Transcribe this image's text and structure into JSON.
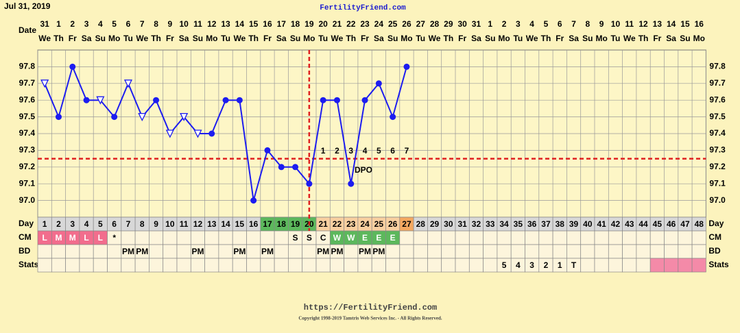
{
  "chart_data": {
    "type": "line",
    "title": "Jul 31, 2019",
    "site": "FertilityFriend.com",
    "date_label": "Date",
    "dates": [
      "31",
      "1",
      "2",
      "3",
      "4",
      "5",
      "6",
      "7",
      "8",
      "9",
      "10",
      "11",
      "12",
      "13",
      "14",
      "15",
      "16",
      "17",
      "18",
      "19",
      "20",
      "21",
      "22",
      "23",
      "24",
      "25",
      "26",
      "27",
      "28",
      "29",
      "30",
      "31",
      "1",
      "2",
      "3",
      "4",
      "5",
      "6",
      "7",
      "8",
      "9",
      "10",
      "11",
      "12",
      "13",
      "14",
      "15",
      "16"
    ],
    "weekdays": [
      "We",
      "Th",
      "Fr",
      "Sa",
      "Su",
      "Mo",
      "Tu",
      "We",
      "Th",
      "Fr",
      "Sa",
      "Su",
      "Mo",
      "Tu",
      "We",
      "Th",
      "Fr",
      "Sa",
      "Su",
      "Mo",
      "Tu",
      "We",
      "Th",
      "Fr",
      "Sa",
      "Su",
      "Mo",
      "Tu",
      "We",
      "Th",
      "Fr",
      "Sa",
      "Su",
      "Mo",
      "Tu",
      "We",
      "Th",
      "Fr",
      "Sa",
      "Su",
      "Mo",
      "Tu",
      "We",
      "Th",
      "Fr",
      "Sa",
      "Su",
      "Mo"
    ],
    "day_label": "Day",
    "days": [
      1,
      2,
      3,
      4,
      5,
      6,
      7,
      8,
      9,
      10,
      11,
      12,
      13,
      14,
      15,
      16,
      17,
      18,
      19,
      20,
      21,
      22,
      23,
      24,
      25,
      26,
      27,
      28,
      29,
      30,
      31,
      32,
      33,
      34,
      35,
      36,
      37,
      38,
      39,
      40,
      41,
      42,
      43,
      44,
      45,
      46,
      47,
      48
    ],
    "day_colors": [
      "#d8d8d8",
      "#d8d8d8",
      "#d8d8d8",
      "#d8d8d8",
      "#d8d8d8",
      "#d8d8d8",
      "#d8d8d8",
      "#d8d8d8",
      "#d8d8d8",
      "#d8d8d8",
      "#d8d8d8",
      "#d8d8d8",
      "#d8d8d8",
      "#d8d8d8",
      "#d8d8d8",
      "#d8d8d8",
      "#5cb85c",
      "#5cb85c",
      "#5cb85c",
      "#5cb85c",
      "#f8cfa0",
      "#f8cfa0",
      "#f8cfa0",
      "#f8cfa0",
      "#f8cfa0",
      "#f8cfa0",
      "#f4a860",
      "#d8d8d8",
      "#d8d8d8",
      "#d8d8d8",
      "#d8d8d8",
      "#d8d8d8",
      "#d8d8d8",
      "#d8d8d8",
      "#d8d8d8",
      "#d8d8d8",
      "#d8d8d8",
      "#d8d8d8",
      "#d8d8d8",
      "#d8d8d8",
      "#d8d8d8",
      "#d8d8d8",
      "#d8d8d8",
      "#d8d8d8",
      "#d8d8d8",
      "#d8d8d8",
      "#d8d8d8",
      "#d8d8d8"
    ],
    "series": [
      {
        "color": "#1c1cf0",
        "values": [
          97.7,
          97.5,
          97.8,
          97.6,
          97.6,
          97.5,
          97.7,
          97.5,
          97.6,
          97.4,
          97.5,
          97.4,
          97.4,
          97.6,
          97.6,
          97.0,
          97.3,
          97.2,
          97.2,
          97.1,
          97.6,
          97.6,
          97.1,
          97.6,
          97.7,
          97.5,
          97.8,
          null,
          null,
          null,
          null,
          null,
          null,
          null,
          null,
          null,
          null,
          null,
          null,
          null,
          null,
          null,
          null,
          null,
          null,
          null,
          null,
          null
        ],
        "markers": [
          "triangle",
          "circle",
          "circle",
          "circle",
          "triangle",
          "circle",
          "triangle",
          "triangle",
          "circle",
          "triangle",
          "triangle",
          "triangle",
          "circle",
          "circle",
          "circle",
          "circle",
          "circle",
          "circle",
          "circle",
          "circle",
          "circle",
          "circle",
          "circle",
          "circle",
          "circle",
          "circle",
          "circle",
          null,
          null,
          null,
          null,
          null,
          null,
          null,
          null,
          null,
          null,
          null,
          null,
          null,
          null,
          null,
          null,
          null,
          null,
          null,
          null,
          null
        ]
      }
    ],
    "ylim": [
      96.9,
      97.9
    ],
    "yticks": [
      {
        "value": 97.0,
        "label": "97.0"
      },
      97.1,
      97.2,
      97.3,
      97.4,
      97.5,
      97.6,
      97.7,
      97.8
    ],
    "cover_line": 97.25,
    "cover_color": "#e02020",
    "ovulation_day": 20,
    "dpo": {
      "label": "DPO",
      "days": [
        21,
        22,
        23,
        24,
        25,
        26,
        27
      ],
      "numbers": [
        "1",
        "2",
        "3",
        "4",
        "5",
        "6",
        "7"
      ]
    },
    "cm": {
      "label": "CM",
      "values": [
        "L",
        "M",
        "M",
        "L",
        "L",
        "*",
        null,
        null,
        null,
        null,
        null,
        null,
        null,
        null,
        null,
        null,
        null,
        null,
        "S",
        "S",
        "C",
        "W",
        "W",
        "E",
        "E",
        "E",
        null,
        null,
        null,
        null,
        null,
        null,
        null,
        null,
        null,
        null,
        null,
        null,
        null,
        null,
        null,
        null,
        null,
        null,
        null,
        null,
        null,
        null
      ],
      "colors": [
        "#f26d8d",
        "#f26d8d",
        "#f26d8d",
        "#f26d8d",
        "#f26d8d",
        null,
        null,
        null,
        null,
        null,
        null,
        null,
        null,
        null,
        null,
        null,
        null,
        null,
        null,
        null,
        null,
        "#5cb85c",
        "#5cb85c",
        "#5cb85c",
        "#5cb85c",
        "#5cb85c",
        null,
        null,
        null,
        null,
        null,
        null,
        null,
        null,
        null,
        null,
        null,
        null,
        null,
        null,
        null,
        null,
        null,
        null,
        null,
        null,
        null,
        null
      ]
    },
    "bd": {
      "label": "BD",
      "values": [
        null,
        null,
        null,
        null,
        null,
        null,
        "PM",
        "PM",
        null,
        null,
        null,
        "PM",
        null,
        null,
        "PM",
        null,
        "PM",
        null,
        null,
        null,
        "PM",
        "PM",
        null,
        "PM",
        "PM",
        null,
        null,
        null,
        null,
        null,
        null,
        null,
        null,
        null,
        null,
        null,
        null,
        null,
        null,
        null,
        null,
        null,
        null,
        null,
        null,
        null,
        null,
        null
      ]
    },
    "stats": {
      "label": "Stats",
      "values": [
        null,
        null,
        null,
        null,
        null,
        null,
        null,
        null,
        null,
        null,
        null,
        null,
        null,
        null,
        null,
        null,
        null,
        null,
        null,
        null,
        null,
        null,
        null,
        null,
        null,
        null,
        null,
        null,
        null,
        null,
        null,
        null,
        null,
        "5",
        "4",
        "3",
        "2",
        "1",
        "T",
        null,
        null,
        null,
        null,
        null,
        null,
        null,
        null,
        null
      ],
      "colors": [
        null,
        null,
        null,
        null,
        null,
        null,
        null,
        null,
        null,
        null,
        null,
        null,
        null,
        null,
        null,
        null,
        null,
        null,
        null,
        null,
        null,
        null,
        null,
        null,
        null,
        null,
        null,
        null,
        null,
        null,
        null,
        null,
        null,
        null,
        null,
        null,
        null,
        null,
        null,
        null,
        null,
        null,
        null,
        null,
        "#f48aa8",
        "#f48aa8",
        "#f48aa8",
        "#f48aa8"
      ]
    },
    "url": "https://FertilityFriend.com",
    "copyright": "Copyright 1998-2019 Tamtris Web Services Inc. - All Rights Reserved."
  }
}
